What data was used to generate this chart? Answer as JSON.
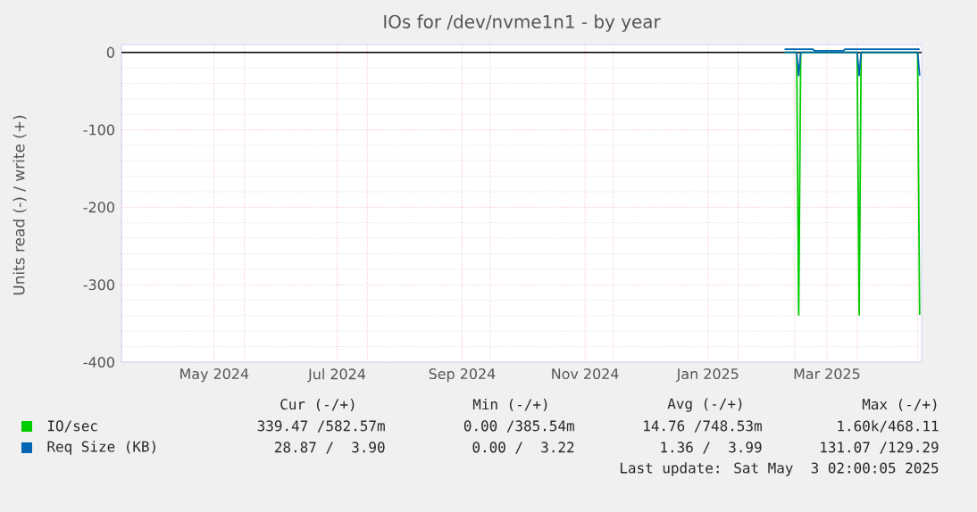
{
  "chart_data": {
    "type": "line",
    "title": "IOs for /dev/nvme1n1 - by year",
    "ylabel": "Units read (-) / write (+)",
    "xlim": [
      "2024-04-01",
      "2025-05-03"
    ],
    "xticks": [
      {
        "value": "2024-04-01",
        "label": null
      },
      {
        "value": "2024-05-17",
        "label": "May 2024"
      },
      {
        "value": "2024-06-01",
        "label": null
      },
      {
        "value": "2024-07-17",
        "label": "Jul 2024"
      },
      {
        "value": "2024-08-01",
        "label": null
      },
      {
        "value": "2024-09-17",
        "label": "Sep 2024"
      },
      {
        "value": "2024-10-01",
        "label": null
      },
      {
        "value": "2024-11-17",
        "label": "Nov 2024"
      },
      {
        "value": "2024-12-01",
        "label": null
      },
      {
        "value": "2025-01-17",
        "label": "Jan 2025"
      },
      {
        "value": "2025-02-01",
        "label": null
      },
      {
        "value": "2025-03-01",
        "label": null
      },
      {
        "value": "2025-03-17",
        "label": "Mar 2025"
      },
      {
        "value": "2025-04-01",
        "label": null
      },
      {
        "value": "2025-05-01",
        "label": null
      }
    ],
    "ylim": [
      -400,
      10
    ],
    "yticks": [
      -400,
      -300,
      -200,
      -100,
      0
    ],
    "grid": true,
    "legend": "bottom",
    "marker": "none",
    "line_style": "solid",
    "ref_lines": [
      {
        "axis": "y",
        "value": 0,
        "color": "#000000"
      }
    ],
    "series": [
      {
        "name": "IO/sec",
        "color": "#00cc00",
        "x": [
          "2025-02-24",
          "2025-03-02",
          "2025-03-03",
          "2025-03-04",
          "2025-04-01",
          "2025-04-02",
          "2025-04-03",
          "2025-05-01",
          "2025-05-02"
        ],
        "values": [
          0,
          0,
          -339,
          0,
          0,
          -339,
          0,
          0,
          -339
        ]
      },
      {
        "name": "Req Size (KB)",
        "color": "#0066b3",
        "x": [
          "2025-02-24",
          "2025-03-02",
          "2025-03-03",
          "2025-03-04",
          "2025-04-01",
          "2025-04-02",
          "2025-04-03",
          "2025-05-01",
          "2025-05-02"
        ],
        "values": [
          0,
          0,
          -30,
          0,
          0,
          -30,
          0,
          0,
          -30
        ]
      },
      {
        "color": "#0066b3",
        "x": [
          "2025-02-24",
          "2025-03-10",
          "2025-03-11",
          "2025-03-25",
          "2025-03-26",
          "2025-04-15",
          "2025-05-02"
        ],
        "values": [
          4,
          4,
          2,
          2,
          4,
          4,
          4
        ]
      }
    ],
    "annotations": [
      "Cur (-/+)",
      "Min (-/+)",
      "Avg (-/+)",
      "Max (-/+)",
      "339.47 /582.57m",
      "0.00 /385.54m",
      "14.76 /748.53m",
      "1.60k/468.11",
      "28.87 /  3.90",
      "0.00 /  3.22",
      "1.36 /  3.99",
      "131.07 /129.29",
      "Last update: Sat May  3 02:00:05 2025"
    ]
  }
}
